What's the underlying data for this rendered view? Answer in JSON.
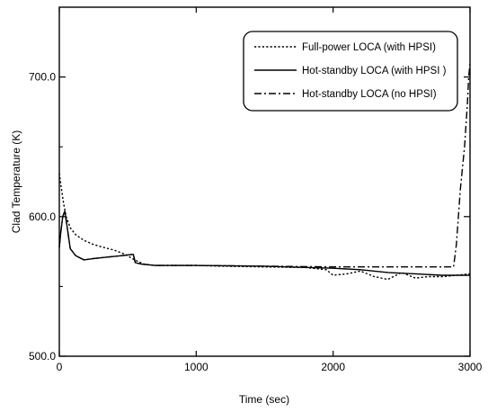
{
  "chart_data": {
    "type": "line",
    "title": "",
    "xlabel": "Time (sec)",
    "ylabel": "Clad Temperature (K)",
    "xlim": [
      0,
      3000
    ],
    "ylim": [
      500,
      750
    ],
    "x_ticks": [
      0,
      1000,
      2000,
      3000
    ],
    "x_tick_labels": [
      "0",
      "1000",
      "2000",
      "3000"
    ],
    "y_ticks": [
      500,
      600,
      700
    ],
    "y_tick_labels": [
      "500.0",
      "600.0",
      "700.0"
    ],
    "grid": false,
    "legend_position": "top-right",
    "series": [
      {
        "name": "Full-power LOCA (with HPSI)",
        "line_style": "dotted",
        "x": [
          0,
          15,
          30,
          50,
          80,
          120,
          180,
          250,
          320,
          400,
          480,
          550,
          620,
          700,
          800,
          1000,
          1200,
          1500,
          1800,
          1950,
          2000,
          2100,
          2200,
          2300,
          2400,
          2500,
          2600,
          2700,
          2800,
          2900,
          3000
        ],
        "y": [
          631,
          620,
          610,
          600,
          592,
          587,
          583,
          580,
          578,
          576,
          573,
          569,
          566,
          565,
          565,
          565,
          564.5,
          564,
          563.5,
          562,
          558,
          559,
          561,
          557,
          555,
          560,
          556,
          557,
          557,
          558,
          559
        ]
      },
      {
        "name": "Hot-standby LOCA (with HPSI )",
        "line_style": "solid",
        "x": [
          0,
          10,
          25,
          40,
          55,
          80,
          120,
          180,
          250,
          350,
          450,
          540,
          555,
          600,
          700,
          1000,
          1500,
          2000,
          2200,
          2400,
          2600,
          2800,
          3000
        ],
        "y": [
          578,
          588,
          600,
          604,
          594,
          577,
          572,
          569,
          570,
          571,
          572,
          573,
          567,
          566,
          565,
          565,
          564.5,
          563,
          562,
          560,
          559,
          558,
          558
        ]
      },
      {
        "name": "Hot-standby LOCA (no HPSI)",
        "line_style": "dash-dot",
        "x": [
          0,
          10,
          25,
          40,
          55,
          80,
          120,
          180,
          250,
          350,
          450,
          540,
          555,
          600,
          700,
          1000,
          1500,
          2000,
          2500,
          2800,
          2880,
          2900,
          2930,
          2960,
          2980,
          2990,
          3000
        ],
        "y": [
          578,
          588,
          600,
          604,
          594,
          577,
          572,
          569,
          570,
          571,
          572,
          573,
          567,
          566,
          565,
          565,
          564.5,
          564,
          564,
          564,
          564,
          580,
          620,
          650,
          680,
          700,
          710
        ]
      }
    ]
  }
}
